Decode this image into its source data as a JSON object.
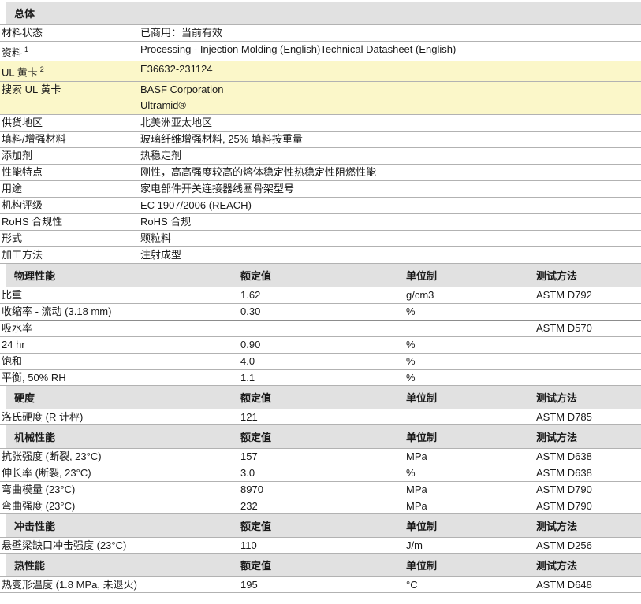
{
  "colors": {
    "section_header_bg": "#e1e1e1",
    "highlight_bg": "#fbf7c9",
    "row_border": "#b2b2b2",
    "text": "#1a1a1a"
  },
  "columns": {
    "value": "额定值",
    "unit": "单位制",
    "method": "测试方法"
  },
  "general": {
    "title": "总体",
    "rows": [
      {
        "label": "材料状态",
        "footnote": "",
        "values": [
          "已商用：当前有效"
        ],
        "highlight": false
      },
      {
        "label": "资料",
        "footnote": "1",
        "values": [
          "Processing - Injection Molding (English)Technical Datasheet (English)"
        ],
        "highlight": false
      },
      {
        "label": "UL 黄卡",
        "footnote": "2",
        "values": [
          "E36632-231124"
        ],
        "highlight": true
      },
      {
        "label": "搜索 UL 黄卡",
        "footnote": "",
        "values": [
          "BASF Corporation",
          "Ultramid®"
        ],
        "highlight": true
      },
      {
        "label": "供货地区",
        "footnote": "",
        "values": [
          "北美洲亚太地区"
        ],
        "highlight": false
      },
      {
        "label": "填料/增强材料",
        "footnote": "",
        "values": [
          "玻璃纤维增强材料, 25% 填料按重量"
        ],
        "highlight": false
      },
      {
        "label": "添加剂",
        "footnote": "",
        "values": [
          "热稳定剂"
        ],
        "highlight": false
      },
      {
        "label": "性能特点",
        "footnote": "",
        "values": [
          "刚性，高高强度较高的熔体稳定性热稳定性阻燃性能"
        ],
        "highlight": false
      },
      {
        "label": "用途",
        "footnote": "",
        "values": [
          "家电部件开关连接器线圈骨架型号"
        ],
        "highlight": false
      },
      {
        "label": "机构评级",
        "footnote": "",
        "values": [
          "EC 1907/2006 (REACH)"
        ],
        "highlight": false
      },
      {
        "label": "RoHS 合规性",
        "footnote": "",
        "values": [
          "RoHS 合规"
        ],
        "highlight": false
      },
      {
        "label": "形式",
        "footnote": "",
        "values": [
          "颗粒料"
        ],
        "highlight": false
      },
      {
        "label": "加工方法",
        "footnote": "",
        "values": [
          "注射成型"
        ],
        "highlight": false
      }
    ]
  },
  "property_sections": [
    {
      "title": "物理性能",
      "rows": [
        {
          "label": "比重",
          "value": "1.62",
          "unit": "g/cm3",
          "method": "ASTM D792"
        },
        {
          "label": "收缩率 - 流动 (3.18 mm)",
          "value": "0.30",
          "unit": "%",
          "method": ""
        },
        {
          "label": "吸水率",
          "value": "",
          "unit": "",
          "method": "ASTM D570",
          "group": true
        },
        {
          "label": "24 hr",
          "value": "0.90",
          "unit": "%",
          "method": ""
        },
        {
          "label": "饱和",
          "value": "4.0",
          "unit": "%",
          "method": ""
        },
        {
          "label": "平衡, 50% RH",
          "value": "1.1",
          "unit": "%",
          "method": ""
        }
      ]
    },
    {
      "title": "硬度",
      "rows": [
        {
          "label": "洛氏硬度 (R 计秤)",
          "value": "121",
          "unit": "",
          "method": "ASTM D785"
        }
      ]
    },
    {
      "title": "机械性能",
      "rows": [
        {
          "label": "抗张强度 (断裂, 23°C)",
          "value": "157",
          "unit": "MPa",
          "method": "ASTM D638"
        },
        {
          "label": "伸长率 (断裂, 23°C)",
          "value": "3.0",
          "unit": "%",
          "method": "ASTM D638"
        },
        {
          "label": "弯曲模量 (23°C)",
          "value": "8970",
          "unit": "MPa",
          "method": "ASTM D790"
        },
        {
          "label": "弯曲强度 (23°C)",
          "value": "232",
          "unit": "MPa",
          "method": "ASTM D790"
        }
      ]
    },
    {
      "title": "冲击性能",
      "rows": [
        {
          "label": "悬壁梁缺口冲击强度 (23°C)",
          "value": "110",
          "unit": "J/m",
          "method": "ASTM D256"
        }
      ]
    },
    {
      "title": "热性能",
      "rows": [
        {
          "label": "热变形温度 (1.8 MPa, 未退火)",
          "value": "195",
          "unit": "°C",
          "method": "ASTM D648"
        }
      ]
    }
  ]
}
